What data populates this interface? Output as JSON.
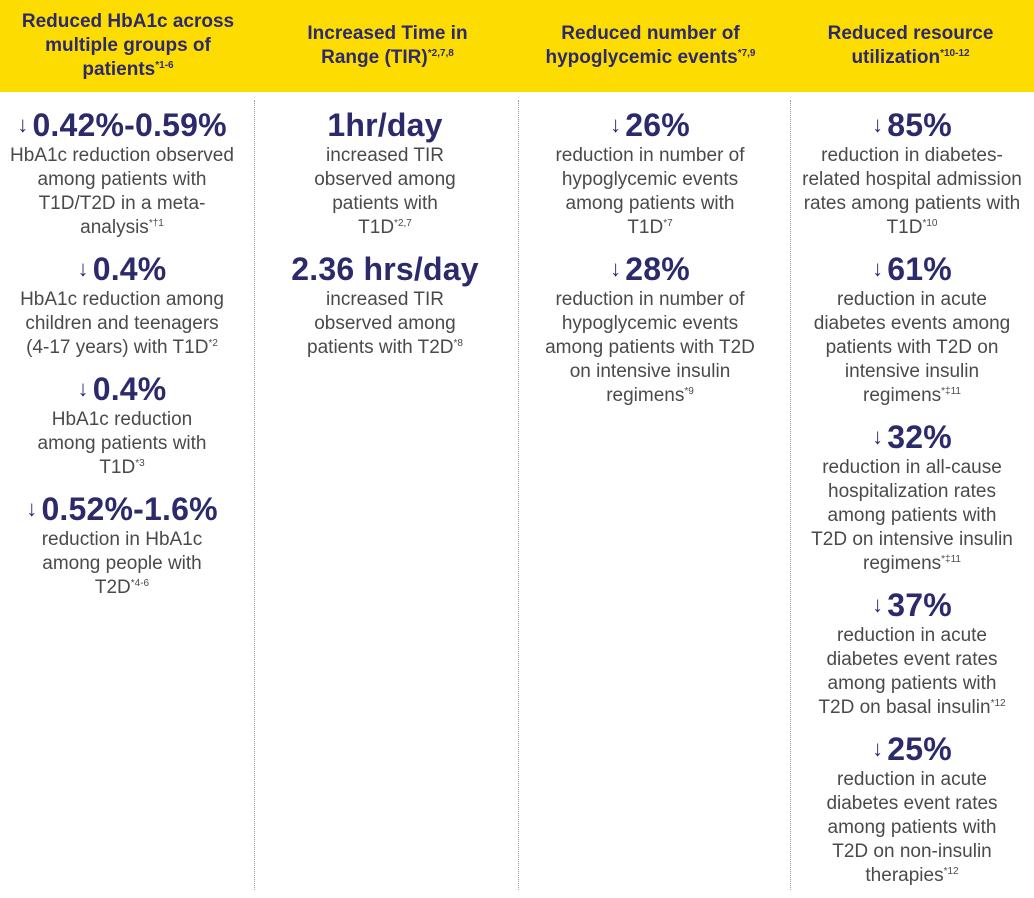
{
  "colors": {
    "header_bg": "#fddc02",
    "accent": "#2c2a6b",
    "text": "#4a4a4a"
  },
  "columns": [
    {
      "header": "Reduced HbA1c across multiple groups of patients",
      "header_sup": "*1-6",
      "stats": [
        {
          "arrow": "↓",
          "value": "0.42%-0.59%",
          "desc": "HbA1c reduction observed among patients with T1D/T2D in a meta-analysis",
          "sup": "*†1"
        },
        {
          "arrow": "↓",
          "value": "0.4%",
          "desc": "HbA1c reduction among children and teenagers (4-17 years) with T1D",
          "sup": "*2"
        },
        {
          "arrow": "↓",
          "value": "0.4%",
          "desc": "HbA1c reduction among patients with T1D",
          "sup": "*3"
        },
        {
          "arrow": "↓",
          "value": "0.52%-1.6%",
          "desc": "reduction in HbA1c among people with T2D",
          "sup": "*4-6"
        }
      ]
    },
    {
      "header": "Increased Time in Range (TIR)",
      "header_sup": "*2,7,8",
      "stats": [
        {
          "arrow": "",
          "value": "1hr/day",
          "desc": "increased TIR observed among patients with T1D",
          "sup": "*2,7"
        },
        {
          "arrow": "",
          "value": "2.36 hrs/day",
          "desc": "increased TIR observed among patients with T2D",
          "sup": "*8"
        }
      ]
    },
    {
      "header": "Reduced number of hypoglycemic events",
      "header_sup": "*7,9",
      "stats": [
        {
          "arrow": "↓",
          "value": "26%",
          "desc": "reduction in number of hypoglycemic events among patients with T1D",
          "sup": "*7"
        },
        {
          "arrow": "↓",
          "value": "28%",
          "desc": "reduction in number of hypoglycemic events among patients with T2D on intensive insulin regimens",
          "sup": "*9"
        }
      ]
    },
    {
      "header": "Reduced resource utilization",
      "header_sup": "*10-12",
      "stats": [
        {
          "arrow": "↓",
          "value": "85%",
          "desc": "reduction in diabetes-related hospital admission rates among patients with T1D",
          "sup": "*10"
        },
        {
          "arrow": "↓",
          "value": "61%",
          "desc": "reduction in acute diabetes events among patients with T2D on intensive insulin regimens",
          "sup": "*‡11"
        },
        {
          "arrow": "↓",
          "value": "32%",
          "desc": "reduction in all-cause hospitalization rates among patients with T2D on intensive insulin regimens",
          "sup": "*‡11"
        },
        {
          "arrow": "↓",
          "value": "37%",
          "desc": "reduction in acute diabetes event rates among patients with T2D on basal insulin",
          "sup": "*12"
        },
        {
          "arrow": "↓",
          "value": "25%",
          "desc": "reduction in acute diabetes event rates among patients with T2D on non-insulin therapies",
          "sup": "*12"
        }
      ]
    }
  ]
}
